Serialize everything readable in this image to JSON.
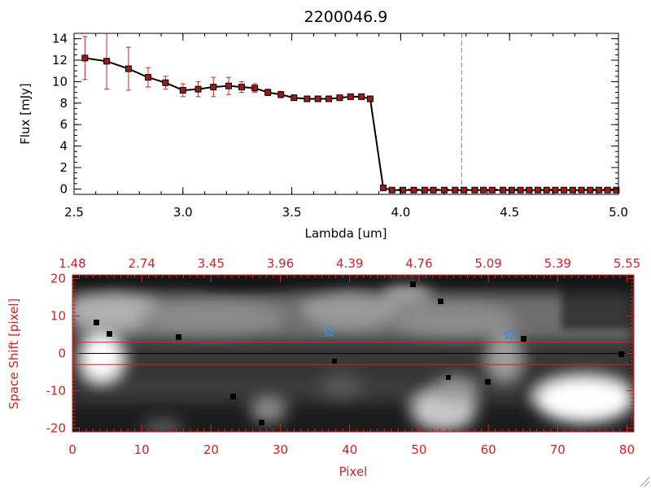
{
  "colors": {
    "foreground": "#000000",
    "error_bar": "#d42020",
    "marker_fill": "#a01818",
    "marker_edge": "#000000",
    "vline": "#3a8ee8",
    "image_accent": "#d42020",
    "star": "#3a8ee8"
  },
  "chart_data": [
    {
      "type": "line",
      "title": "2200046.9",
      "xlabel": "Lambda [um]",
      "ylabel": "Flux [mJy]",
      "xlim": [
        2.5,
        5.0
      ],
      "ylim": [
        -0.5,
        14.5
      ],
      "x_ticks": [
        2.5,
        3.0,
        3.5,
        4.0,
        4.5,
        5.0
      ],
      "x_tick_labels": [
        "2.5",
        "3.0",
        "3.5",
        "4.0",
        "4.5",
        "5.0"
      ],
      "y_ticks": [
        0,
        2,
        4,
        6,
        8,
        10,
        12,
        14
      ],
      "y_tick_labels": [
        "0",
        "2",
        "4",
        "6",
        "8",
        "10",
        "12",
        "14"
      ],
      "vline_x": 4.28,
      "hline_y": 0,
      "series": [
        {
          "x": [
            2.55,
            2.65,
            2.75,
            2.84,
            2.92,
            3.0,
            3.07,
            3.14,
            3.21,
            3.27,
            3.33,
            3.39,
            3.45,
            3.51,
            3.57,
            3.62,
            3.67,
            3.72,
            3.77,
            3.82,
            3.86,
            3.92,
            3.96,
            4.01,
            4.06,
            4.11,
            4.15,
            4.2,
            4.25,
            4.29,
            4.34,
            4.38,
            4.42,
            4.47,
            4.51,
            4.55,
            4.59,
            4.63,
            4.67,
            4.71,
            4.75,
            4.79,
            4.83,
            4.87,
            4.91,
            4.95,
            4.99
          ],
          "y": [
            12.2,
            11.9,
            11.2,
            10.4,
            9.9,
            9.2,
            9.3,
            9.5,
            9.6,
            9.5,
            9.4,
            9.0,
            8.8,
            8.5,
            8.4,
            8.4,
            8.4,
            8.5,
            8.6,
            8.6,
            8.4,
            0.1,
            -0.1,
            -0.1,
            -0.1,
            -0.1,
            -0.1,
            -0.1,
            -0.1,
            -0.1,
            -0.1,
            -0.1,
            -0.1,
            -0.1,
            -0.1,
            -0.1,
            -0.1,
            -0.1,
            -0.1,
            -0.1,
            -0.1,
            -0.1,
            -0.1,
            -0.1,
            -0.1,
            -0.1,
            -0.1
          ],
          "yerr": [
            2.0,
            2.6,
            2.0,
            0.9,
            0.6,
            0.6,
            0.7,
            0.9,
            0.8,
            0.5,
            0.4,
            0.3,
            0.3,
            0.2,
            0.2,
            0.2,
            0.2,
            0.2,
            0.2,
            0.2,
            0.2,
            0,
            0,
            0,
            0,
            0,
            0,
            0,
            0,
            0,
            0,
            0,
            0,
            0,
            0,
            0,
            0,
            0,
            0,
            0,
            0,
            0,
            0,
            0,
            0,
            0,
            0
          ]
        }
      ]
    },
    {
      "type": "heatmap",
      "xlabel": "Pixel",
      "ylabel": "Space Shift [pixel]",
      "xlim": [
        0,
        81
      ],
      "ylim": [
        -21,
        21
      ],
      "x_ticks": [
        0,
        10,
        20,
        30,
        40,
        50,
        60,
        70,
        80
      ],
      "x_tick_labels": [
        "0",
        "10",
        "20",
        "30",
        "40",
        "50",
        "60",
        "70",
        "80"
      ],
      "y_ticks": [
        -20,
        -10,
        0,
        10,
        20
      ],
      "y_tick_labels": [
        "-20",
        "-10",
        "0",
        "10",
        "20"
      ],
      "top_tick_labels": [
        "1.48",
        "2.74",
        "3.45",
        "3.96",
        "4.39",
        "4.76",
        "5.09",
        "5.39",
        "5.55"
      ],
      "hlines": [
        3,
        0,
        -3
      ],
      "stars": [
        {
          "x": 37,
          "y": 5.8
        },
        {
          "x": 63,
          "y": 5.0
        }
      ]
    }
  ]
}
